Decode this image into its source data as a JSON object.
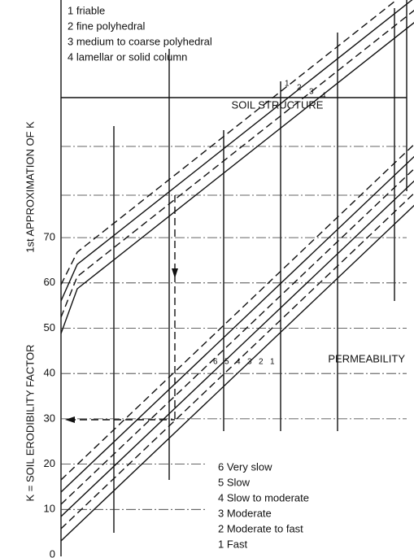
{
  "structure_legend": [
    "1  friable",
    "2  fine polyhedral",
    "3  medium to coarse polyhedral",
    "4  lamellar or solid column"
  ],
  "structure_title": "SOIL STRUCTURE",
  "structure_line_labels": [
    "1",
    "2",
    "3",
    "4"
  ],
  "permeability_title": "PERMEABILITY",
  "permeability_line_labels": [
    "6",
    "5",
    "4",
    "3",
    "2",
    "1"
  ],
  "permeability_legend": [
    "6  Very slow",
    "5  Slow",
    "4  Slow to moderate",
    "3  Moderate",
    "2  Moderate to fast",
    "1  Fast"
  ],
  "upper_axis_label": "1st APPROXIMATION OF K",
  "lower_axis_label": "K =  SOIL ERODIBILITY FACTOR",
  "axis_ticks": [
    0,
    10,
    20,
    30,
    40,
    50,
    60,
    70
  ]
}
